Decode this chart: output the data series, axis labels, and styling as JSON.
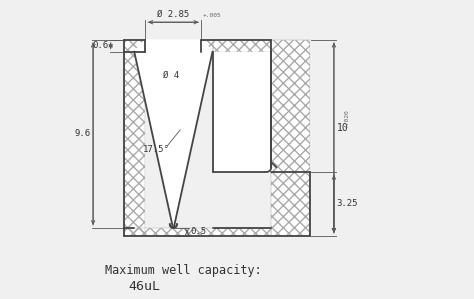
{
  "bg_color": "#f0f0f0",
  "line_color": "#444444",
  "hatch_color": "#aaaaaa",
  "dim_color": "#555555",
  "title1": "Maximum well capacity:",
  "title2": "46uL",
  "dim_d285": "Ø 2.85",
  "dim_d285_tol": "+.005",
  "dim_d4": "Ø 4",
  "dim_175": "17.5°",
  "dim_06": "0.6",
  "dim_96": "9.6",
  "dim_05": "0.5",
  "dim_10": "10",
  "dim_10_tol": "+.020",
  "dim_325": "3.25",
  "font_size_dim": 6.5,
  "font_size_title": 8.5,
  "font_family": "monospace"
}
